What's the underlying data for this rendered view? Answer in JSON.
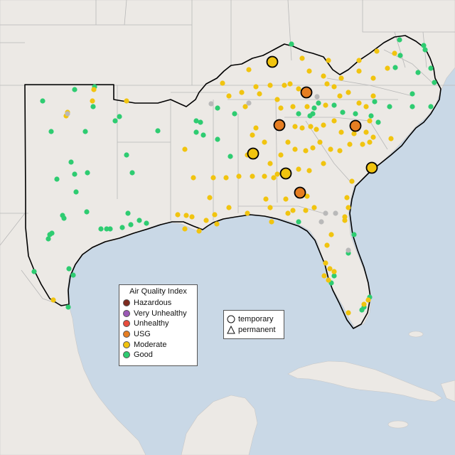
{
  "legend": {
    "title": "Air Quality Index",
    "items": [
      {
        "label": "Hazardous",
        "color": "#7e2a1e"
      },
      {
        "label": "Very Unhealthy",
        "color": "#9b59b6"
      },
      {
        "label": "Unhealthy",
        "color": "#e74c3c"
      },
      {
        "label": "USG",
        "color": "#e67e22"
      },
      {
        "label": "Moderate",
        "color": "#f1c40f"
      },
      {
        "label": "Good",
        "color": "#2ecc71"
      }
    ]
  },
  "shape_legend": {
    "items": [
      {
        "label": "temporary",
        "shape": "circle"
      },
      {
        "label": "permanent",
        "shape": "triangle"
      }
    ]
  },
  "colors": {
    "land": "#ece9e5",
    "water": "#c9d8e6",
    "border": "#b8b8b8",
    "region_outline": "#000000",
    "no_data": "#b9b9b9"
  }
}
